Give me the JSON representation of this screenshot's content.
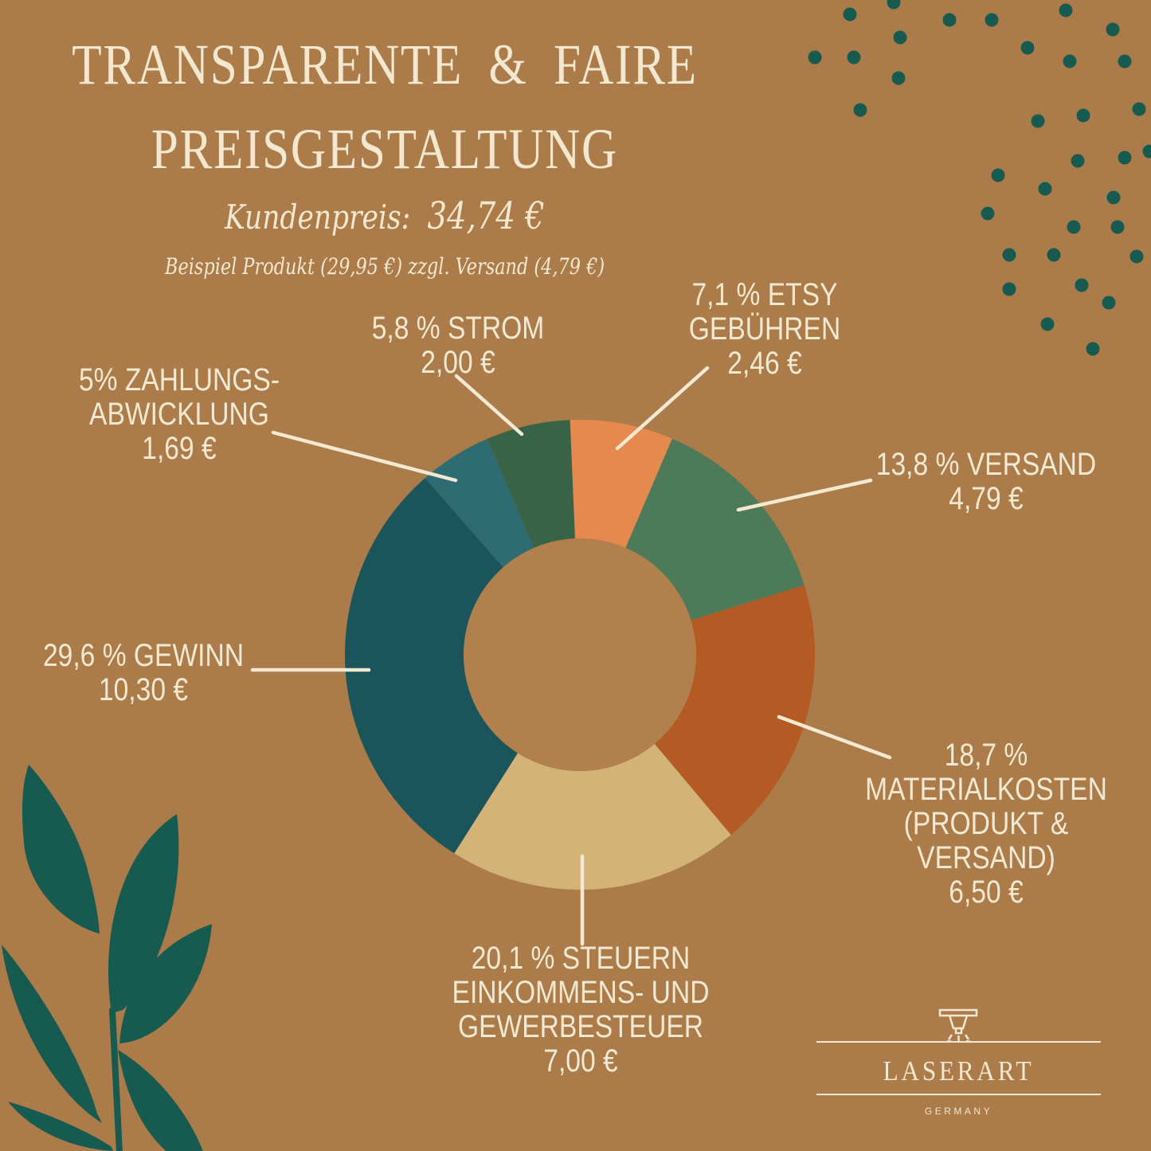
{
  "title": {
    "line1": "TRANSPARENTE & FAIRE",
    "line2": "PREISGESTALTUNG"
  },
  "subtitle": {
    "kundenpreis_label": "Kundenpreis:",
    "kundenpreis_value": "34,74 €",
    "beispiel": "Beispiel Produkt (29,95 €) zzgl. Versand (4,79 €)"
  },
  "logo": {
    "name": "LASERART",
    "country": "GERMANY"
  },
  "colors": {
    "background": "#ab7b4a",
    "donut_hole": "#b1804d",
    "text_cream": "#f3e9d2",
    "decor_teal": "#165a50"
  },
  "chart_data": {
    "type": "donut",
    "title": "Transparente & faire Preisgestaltung",
    "customer_price_eur": "34,74 €",
    "start_angle_deg": -2.4,
    "segments": [
      {
        "id": "etsy-gebuehren",
        "percent": 7.1,
        "value_eur": "2,46 €",
        "color": "#e5894f",
        "lines": [
          "7,1 % ETSY",
          "GEBÜHREN",
          "2,46 €"
        ]
      },
      {
        "id": "versand",
        "percent": 13.8,
        "value_eur": "4,79 €",
        "color": "#4d7a58",
        "lines": [
          "13,8 % VERSAND",
          "4,79 €"
        ]
      },
      {
        "id": "materialkosten",
        "percent": 18.7,
        "value_eur": "6,50 €",
        "color": "#b45a24",
        "lines": [
          "18,7 %",
          "MATERIALKOSTEN",
          "(PRODUKT &",
          "VERSAND)",
          "6,50 €"
        ]
      },
      {
        "id": "steuern",
        "percent": 20.1,
        "value_eur": "7,00 €",
        "color": "#d3b377",
        "lines": [
          "20,1 % STEUERN",
          "EINKOMMENS- UND",
          "GEWERBESTEUER",
          "7,00 €"
        ]
      },
      {
        "id": "gewinn",
        "percent": 29.6,
        "value_eur": "10,30 €",
        "color": "#19555a",
        "lines": [
          "29,6 % GEWINN",
          "10,30 €"
        ]
      },
      {
        "id": "zahlungsabwicklung",
        "percent": 5.0,
        "value_eur": "1,69 €",
        "color": "#2e6b72",
        "lines": [
          "5% ZAHLUNGS-",
          "ABWICKLUNG",
          "1,69 €"
        ]
      },
      {
        "id": "strom",
        "percent": 5.8,
        "value_eur": "2,00 €",
        "color": "#386346",
        "lines": [
          "5,8 % STROM",
          "2,00 €"
        ]
      }
    ]
  }
}
